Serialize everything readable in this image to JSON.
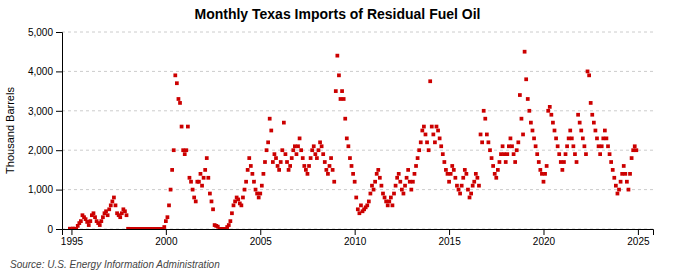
{
  "chart_data": {
    "type": "scatter",
    "title": "Monthly Texas Imports of Residual Fuel Oil",
    "ylabel": "Thousand Barrels",
    "annotations": [
      "Source: U.S. Energy Information Administration"
    ],
    "color": "#cc0000",
    "marker": "square",
    "grid": true,
    "xlim": [
      1994.5,
      2025.8
    ],
    "ylim": [
      0,
      5000
    ],
    "xticks": [
      1995,
      2000,
      2005,
      2010,
      2015,
      2020,
      2025
    ],
    "yticks": [
      0,
      {
        "value": 1000,
        "label": "1,000"
      },
      {
        "value": 2000,
        "label": "2,000"
      },
      {
        "value": 3000,
        "label": "3,000"
      },
      {
        "value": 4000,
        "label": "4,000"
      },
      {
        "value": 5000,
        "label": "5,000"
      }
    ],
    "x": [
      1994.917,
      1995.083,
      1995.167,
      1995.25,
      1995.333,
      1995.417,
      1995.5,
      1995.583,
      1995.667,
      1995.75,
      1995.833,
      1995.917,
      1996.0,
      1996.083,
      1996.167,
      1996.25,
      1996.333,
      1996.417,
      1996.5,
      1996.583,
      1996.667,
      1996.75,
      1996.833,
      1996.917,
      1997.0,
      1997.083,
      1997.167,
      1997.25,
      1997.333,
      1997.417,
      1997.5,
      1997.583,
      1997.667,
      1997.75,
      1997.833,
      1997.917,
      1998.0,
      1998.083,
      1998.167,
      1998.25,
      1998.333,
      1998.417,
      1998.5,
      1998.583,
      1998.667,
      1998.75,
      1998.833,
      1998.917,
      1999.0,
      1999.083,
      1999.167,
      1999.25,
      1999.333,
      1999.417,
      1999.5,
      1999.583,
      1999.667,
      1999.75,
      1999.833,
      1999.917,
      2000.0,
      2000.083,
      2000.167,
      2000.25,
      2000.333,
      2000.417,
      2000.5,
      2000.583,
      2000.667,
      2000.75,
      2000.833,
      2000.917,
      2001.0,
      2001.083,
      2001.167,
      2001.25,
      2001.333,
      2001.417,
      2001.5,
      2001.583,
      2001.667,
      2001.75,
      2001.833,
      2001.917,
      2002.0,
      2002.083,
      2002.167,
      2002.25,
      2002.333,
      2002.417,
      2002.5,
      2002.583,
      2002.667,
      2002.75,
      2002.833,
      2002.917,
      2003.0,
      2003.083,
      2003.167,
      2003.25,
      2003.333,
      2003.417,
      2003.5,
      2003.583,
      2003.667,
      2003.75,
      2003.833,
      2003.917,
      2004.0,
      2004.083,
      2004.167,
      2004.25,
      2004.333,
      2004.417,
      2004.5,
      2004.583,
      2004.667,
      2004.75,
      2004.833,
      2004.917,
      2005.0,
      2005.083,
      2005.167,
      2005.25,
      2005.333,
      2005.417,
      2005.5,
      2005.583,
      2005.667,
      2005.75,
      2005.833,
      2005.917,
      2006.0,
      2006.083,
      2006.167,
      2006.25,
      2006.333,
      2006.417,
      2006.5,
      2006.583,
      2006.667,
      2006.75,
      2006.833,
      2006.917,
      2007.0,
      2007.083,
      2007.167,
      2007.25,
      2007.333,
      2007.417,
      2007.5,
      2007.583,
      2007.667,
      2007.75,
      2007.833,
      2007.917,
      2008.0,
      2008.083,
      2008.167,
      2008.25,
      2008.333,
      2008.417,
      2008.5,
      2008.583,
      2008.667,
      2008.75,
      2008.833,
      2008.917,
      2009.0,
      2009.083,
      2009.167,
      2009.25,
      2009.333,
      2009.417,
      2009.5,
      2009.583,
      2009.667,
      2009.75,
      2009.833,
      2009.917,
      2010.0,
      2010.083,
      2010.167,
      2010.25,
      2010.333,
      2010.417,
      2010.5,
      2010.583,
      2010.667,
      2010.75,
      2010.833,
      2010.917,
      2011.0,
      2011.083,
      2011.167,
      2011.25,
      2011.333,
      2011.417,
      2011.5,
      2011.583,
      2011.667,
      2011.75,
      2011.833,
      2011.917,
      2012.0,
      2012.083,
      2012.167,
      2012.25,
      2012.333,
      2012.417,
      2012.5,
      2012.583,
      2012.667,
      2012.75,
      2012.833,
      2012.917,
      2013.0,
      2013.083,
      2013.167,
      2013.25,
      2013.333,
      2013.417,
      2013.5,
      2013.583,
      2013.667,
      2013.75,
      2013.833,
      2013.917,
      2014.0,
      2014.083,
      2014.167,
      2014.25,
      2014.333,
      2014.417,
      2014.5,
      2014.583,
      2014.667,
      2014.75,
      2014.833,
      2014.917,
      2015.0,
      2015.083,
      2015.167,
      2015.25,
      2015.333,
      2015.417,
      2015.5,
      2015.583,
      2015.667,
      2015.75,
      2015.833,
      2015.917,
      2016.0,
      2016.083,
      2016.167,
      2016.25,
      2016.333,
      2016.417,
      2016.5,
      2016.583,
      2016.667,
      2016.75,
      2016.833,
      2016.917,
      2017.0,
      2017.083,
      2017.167,
      2017.25,
      2017.333,
      2017.417,
      2017.5,
      2017.583,
      2017.667,
      2017.75,
      2017.833,
      2017.917,
      2018.0,
      2018.083,
      2018.167,
      2018.25,
      2018.333,
      2018.417,
      2018.5,
      2018.583,
      2018.667,
      2018.75,
      2018.833,
      2018.917,
      2019.0,
      2019.083,
      2019.167,
      2019.25,
      2019.333,
      2019.417,
      2019.5,
      2019.583,
      2019.667,
      2019.75,
      2019.833,
      2019.917,
      2020.0,
      2020.083,
      2020.167,
      2020.25,
      2020.333,
      2020.417,
      2020.5,
      2020.583,
      2020.667,
      2020.75,
      2020.833,
      2020.917,
      2021.0,
      2021.083,
      2021.167,
      2021.25,
      2021.333,
      2021.417,
      2021.5,
      2021.583,
      2021.667,
      2021.75,
      2021.833,
      2021.917,
      2022.0,
      2022.083,
      2022.167,
      2022.25,
      2022.333,
      2022.417,
      2022.5,
      2022.583,
      2022.667,
      2022.75,
      2022.833,
      2022.917,
      2023.0,
      2023.083,
      2023.167,
      2023.25,
      2023.333,
      2023.417,
      2023.5,
      2023.583,
      2023.667,
      2023.75,
      2023.833,
      2023.917,
      2024.0,
      2024.083,
      2024.167,
      2024.25,
      2024.333,
      2024.417,
      2024.5,
      2024.583,
      2024.667,
      2024.75,
      2024.833,
      2024.917
    ],
    "values": [
      8,
      12,
      5,
      0,
      80,
      150,
      200,
      350,
      300,
      250,
      180,
      100,
      200,
      350,
      400,
      300,
      200,
      150,
      100,
      200,
      300,
      400,
      450,
      350,
      500,
      600,
      700,
      800,
      600,
      400,
      350,
      300,
      400,
      500,
      450,
      350,
      5,
      3,
      2,
      1,
      2,
      1,
      0,
      0,
      0,
      0,
      0,
      0,
      0,
      0,
      0,
      0,
      0,
      0,
      0,
      0,
      0,
      0,
      0,
      50,
      200,
      300,
      600,
      1000,
      1500,
      2000,
      3900,
      3700,
      3300,
      3200,
      2600,
      2000,
      1900,
      2000,
      2600,
      1300,
      1200,
      1000,
      800,
      700,
      1200,
      1200,
      1400,
      1100,
      1300,
      1500,
      1800,
      1300,
      900,
      700,
      500,
      100,
      80,
      60,
      0,
      0,
      0,
      0,
      0,
      50,
      100,
      200,
      400,
      600,
      700,
      800,
      750,
      650,
      600,
      800,
      1000,
      1200,
      1500,
      1800,
      1600,
      1400,
      1200,
      1000,
      900,
      800,
      900,
      1100,
      1400,
      1700,
      2000,
      2200,
      2800,
      2500,
      1700,
      1900,
      1800,
      1600,
      1500,
      1700,
      2000,
      2700,
      1900,
      1700,
      1500,
      1600,
      1800,
      2000,
      2100,
      1900,
      2100,
      2300,
      2000,
      1800,
      1600,
      1500,
      1400,
      1600,
      1800,
      2000,
      2100,
      1900,
      1800,
      2000,
      2200,
      2100,
      1900,
      1700,
      1500,
      1400,
      1600,
      1800,
      1500,
      1200,
      3500,
      4400,
      3900,
      3300,
      3500,
      3300,
      2800,
      2300,
      2100,
      1800,
      1600,
      1400,
      1200,
      800,
      500,
      400,
      600,
      450,
      500,
      550,
      600,
      700,
      900,
      1100,
      1000,
      1200,
      1400,
      1500,
      1300,
      1100,
      900,
      800,
      700,
      600,
      700,
      800,
      600,
      900,
      1100,
      1300,
      1400,
      1200,
      1000,
      900,
      1100,
      1300,
      1500,
      1200,
      1000,
      1200,
      1400,
      1600,
      1800,
      2000,
      2200,
      2500,
      2600,
      2400,
      2200,
      2000,
      3750,
      2600,
      2400,
      2200,
      2600,
      2500,
      2300,
      2100,
      1900,
      1700,
      1500,
      1400,
      1200,
      1400,
      1600,
      1500,
      1300,
      1100,
      1000,
      900,
      1100,
      1300,
      1500,
      1400,
      1000,
      800,
      900,
      1100,
      1200,
      1400,
      1300,
      1100,
      2400,
      2200,
      3000,
      2800,
      2400,
      2200,
      2000,
      1800,
      1600,
      1400,
      1300,
      1500,
      1700,
      1900,
      2100,
      1900,
      1700,
      1900,
      2100,
      2300,
      2100,
      1900,
      1700,
      2000,
      2200,
      3400,
      2800,
      2400,
      4500,
      3800,
      3300,
      3000,
      2700,
      2500,
      2300,
      2100,
      1900,
      1700,
      1500,
      1400,
      1200,
      1400,
      1600,
      3000,
      3100,
      2900,
      2700,
      2500,
      2300,
      2100,
      1900,
      1700,
      1500,
      1700,
      1900,
      2100,
      2300,
      2500,
      2300,
      2100,
      1900,
      1700,
      2900,
      2700,
      2500,
      2300,
      2100,
      1900,
      4000,
      3900,
      3200,
      2900,
      2700,
      2500,
      2300,
      2100,
      1900,
      2100,
      2300,
      2500,
      2300,
      2100,
      1900,
      1700,
      1500,
      1300,
      1100,
      900,
      1000,
      1200,
      1400,
      1600,
      1400,
      1200,
      1000,
      1400,
      1800,
      2000,
      2100,
      2000
    ]
  }
}
